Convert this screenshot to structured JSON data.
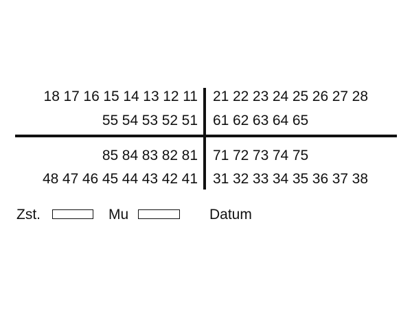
{
  "quadrants": {
    "upper_left_permanent": [
      "18",
      "17",
      "16",
      "15",
      "14",
      "13",
      "12",
      "11"
    ],
    "upper_left_primary": [
      "55",
      "54",
      "53",
      "52",
      "51"
    ],
    "upper_right_permanent": [
      "21",
      "22",
      "23",
      "24",
      "25",
      "26",
      "27",
      "28"
    ],
    "upper_right_primary": [
      "61",
      "62",
      "63",
      "64",
      "65"
    ],
    "lower_left_primary": [
      "85",
      "84",
      "83",
      "82",
      "81"
    ],
    "lower_left_permanent": [
      "48",
      "47",
      "46",
      "45",
      "44",
      "43",
      "42",
      "41"
    ],
    "lower_right_primary": [
      "71",
      "72",
      "73",
      "74",
      "75"
    ],
    "lower_right_permanent": [
      "31",
      "32",
      "33",
      "34",
      "35",
      "36",
      "37",
      "38"
    ]
  },
  "footer": {
    "zst_label": "Zst.",
    "mu_label": "Mu",
    "datum_label": "Datum"
  }
}
